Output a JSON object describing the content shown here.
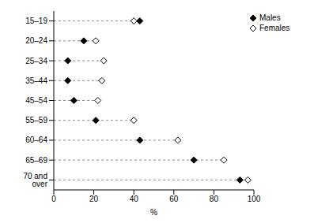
{
  "chart_data": {
    "type": "scatter",
    "x_label": "%",
    "categories": [
      "15–19",
      "20–24",
      "25–34",
      "35–44",
      "45–54",
      "55–59",
      "60–64",
      "65–69",
      "70 and over"
    ],
    "series": [
      {
        "name": "Males",
        "color": "#000000",
        "marker": "diamond",
        "values": [
          43,
          15,
          7,
          7,
          10,
          21,
          43,
          70,
          93
        ]
      },
      {
        "name": "Females",
        "color": "#000000",
        "marker": "diamond_open",
        "values": [
          40,
          21,
          25,
          24,
          22,
          40,
          62,
          85,
          97
        ]
      }
    ],
    "xlim": [
      0,
      100
    ],
    "xticks": [
      0,
      20,
      40,
      60,
      80,
      100
    ],
    "grid": false,
    "legend": "top-right"
  }
}
